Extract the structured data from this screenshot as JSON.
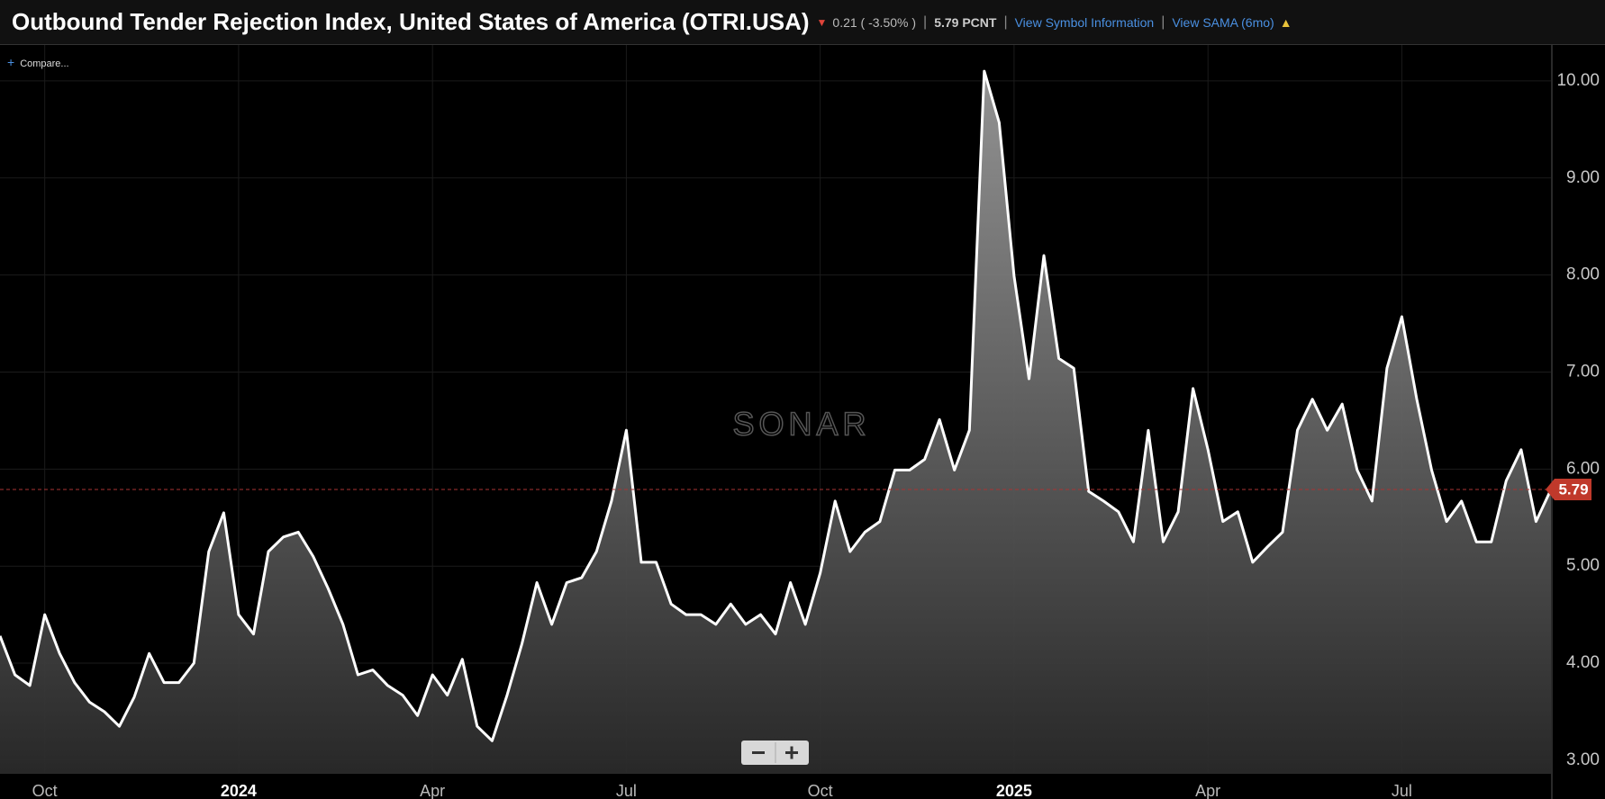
{
  "chart_data": {
    "type": "area",
    "title": "Outbound Tender Rejection Index, United States of America (OTRI.USA)",
    "change_label": "0.21 ( -3.50% )",
    "last_label": "5.79 PCNT",
    "links": [
      "View Symbol Information",
      "View SAMA (6mo)"
    ],
    "compare_label": "Compare...",
    "watermark": "SONAR",
    "color": "#ffffff",
    "grid": true,
    "categories": [
      null,
      null,
      null,
      "Oct",
      null,
      null,
      null,
      null,
      null,
      null,
      null,
      null,
      null,
      null,
      null,
      null,
      "2024",
      null,
      null,
      null,
      null,
      null,
      null,
      null,
      null,
      null,
      null,
      null,
      null,
      "Apr",
      null,
      null,
      null,
      null,
      null,
      null,
      null,
      null,
      null,
      null,
      null,
      null,
      "Jul",
      null,
      null,
      null,
      null,
      null,
      null,
      null,
      null,
      null,
      null,
      null,
      null,
      "Oct",
      null,
      null,
      null,
      null,
      null,
      null,
      null,
      null,
      null,
      null,
      null,
      null,
      "2025",
      null,
      null,
      null,
      null,
      null,
      null,
      null,
      null,
      null,
      null,
      null,
      null,
      "Apr",
      null,
      null,
      null,
      null,
      null,
      null,
      null,
      null,
      null,
      null,
      null,
      null,
      "Jul",
      null,
      null,
      null,
      null,
      null,
      null,
      null,
      null,
      null,
      null
    ],
    "values": [
      4.28,
      3.88,
      3.77,
      4.5,
      4.1,
      3.8,
      3.6,
      3.5,
      3.35,
      3.65,
      4.1,
      3.8,
      3.8,
      4.0,
      5.15,
      5.55,
      4.5,
      4.3,
      5.15,
      5.3,
      5.35,
      5.1,
      4.77,
      4.4,
      3.88,
      3.93,
      3.77,
      3.67,
      3.46,
      3.88,
      3.67,
      4.04,
      3.35,
      3.2,
      3.67,
      4.2,
      4.83,
      4.4,
      4.83,
      4.88,
      5.15,
      5.67,
      6.4,
      5.04,
      5.04,
      4.61,
      4.5,
      4.5,
      4.4,
      4.61,
      4.4,
      4.5,
      4.3,
      4.83,
      4.4,
      4.93,
      5.67,
      5.15,
      5.35,
      5.46,
      5.99,
      5.99,
      6.1,
      6.51,
      5.99,
      6.4,
      10.1,
      9.57,
      7.99,
      6.93,
      8.2,
      7.14,
      7.04,
      5.77,
      5.67,
      5.56,
      5.25,
      6.4,
      5.25,
      5.56,
      6.83,
      6.2,
      5.46,
      5.56,
      5.04,
      5.2,
      5.35,
      6.4,
      6.72,
      6.4,
      6.67,
      5.99,
      5.67,
      7.04,
      7.57,
      6.72,
      5.99,
      5.46,
      5.67,
      5.25,
      5.25,
      5.88,
      6.2,
      5.46,
      5.79
    ],
    "ylim": [
      2.86,
      10.37
    ],
    "yticks": [
      {
        "value": 3,
        "label": "3.00"
      },
      {
        "value": 4,
        "label": "4.00"
      },
      {
        "value": 5,
        "label": "5.00"
      },
      {
        "value": 6,
        "label": "6.00"
      },
      {
        "value": 7,
        "label": "7.00"
      },
      {
        "value": 8,
        "label": "8.00"
      },
      {
        "value": 9,
        "label": "9.00"
      },
      {
        "value": 10,
        "label": "10.00"
      }
    ]
  }
}
